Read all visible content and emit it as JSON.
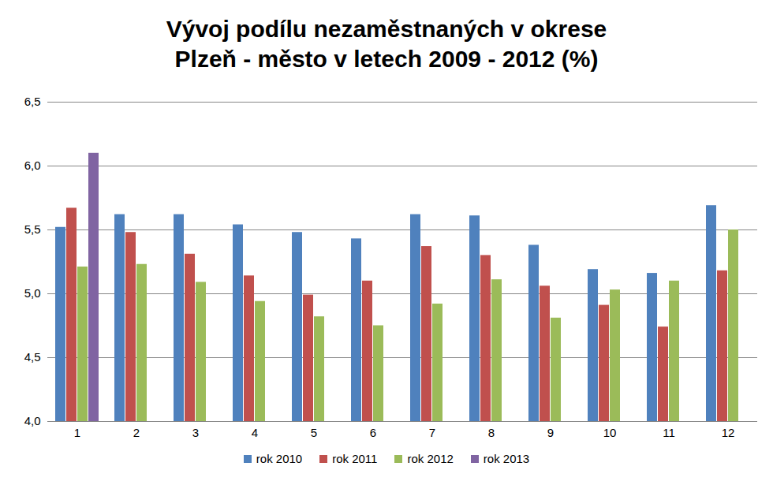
{
  "chart_data": {
    "type": "bar",
    "title": "Vývoj podílu nezaměstnaných v okrese\nPlzeň - město v letech 2009 - 2012 (%)",
    "categories": [
      "1",
      "2",
      "3",
      "4",
      "5",
      "6",
      "7",
      "8",
      "9",
      "10",
      "11",
      "12"
    ],
    "series": [
      {
        "name": "rok 2010",
        "color": "#4f81bd",
        "values": [
          5.52,
          5.62,
          5.62,
          5.54,
          5.48,
          5.43,
          5.62,
          5.61,
          5.38,
          5.19,
          5.16,
          5.69
        ]
      },
      {
        "name": "rok 2011",
        "color": "#c0504d",
        "values": [
          5.67,
          5.48,
          5.31,
          5.14,
          4.99,
          5.1,
          5.37,
          5.3,
          5.06,
          4.91,
          4.74,
          5.18
        ]
      },
      {
        "name": "rok 2012",
        "color": "#9bbb59",
        "values": [
          5.21,
          5.23,
          5.09,
          4.94,
          4.82,
          4.75,
          4.92,
          5.11,
          4.81,
          5.03,
          5.1,
          5.5
        ]
      },
      {
        "name": "rok 2013",
        "color": "#8064a2",
        "values": [
          6.1,
          null,
          null,
          null,
          null,
          null,
          null,
          null,
          null,
          null,
          null,
          null
        ]
      }
    ],
    "ylim": [
      4.0,
      6.5
    ],
    "yticks": [
      {
        "value": 4.0,
        "label": "4,0"
      },
      {
        "value": 4.5,
        "label": "4,5"
      },
      {
        "value": 5.0,
        "label": "5,0"
      },
      {
        "value": 5.5,
        "label": "5,5"
      },
      {
        "value": 6.0,
        "label": "6,0"
      },
      {
        "value": 6.5,
        "label": "6,5"
      }
    ],
    "grid": true,
    "legend": "bottom"
  }
}
